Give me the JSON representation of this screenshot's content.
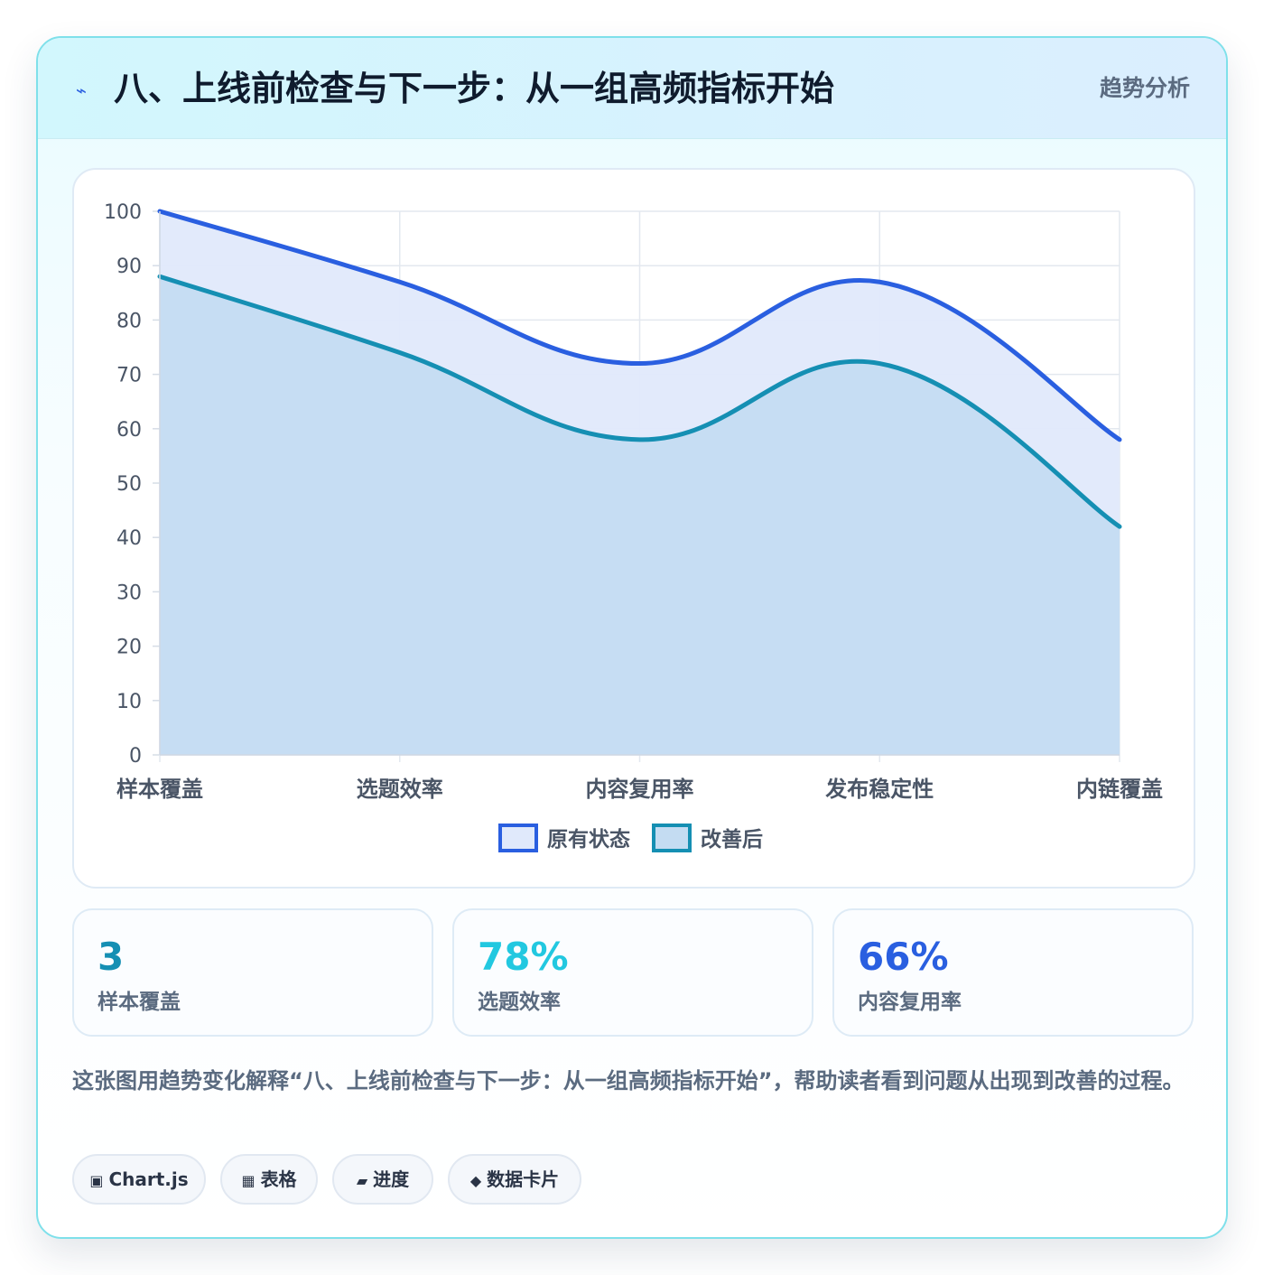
{
  "header": {
    "icon": "bolt-icon",
    "title": "八、上线前检查与下一步：从一组高频指标开始",
    "tag": "趋势分析"
  },
  "chart_data": {
    "type": "area",
    "categories": [
      "样本覆盖",
      "选题效率",
      "内容复用率",
      "发布稳定性",
      "内链覆盖"
    ],
    "series": [
      {
        "name": "原有状态",
        "values": [
          100,
          87,
          72,
          87,
          58
        ],
        "color": "#2a5fe0",
        "fill": "#e0e9fb"
      },
      {
        "name": "改善后",
        "values": [
          88,
          74,
          58,
          72,
          42
        ],
        "color": "#158fb3",
        "fill": "#c4dcf2"
      }
    ],
    "title": "",
    "xlabel": "",
    "ylabel": "",
    "ylim": [
      0,
      100
    ],
    "yticks": [
      "0",
      "10",
      "20",
      "30",
      "40",
      "50",
      "60",
      "70",
      "80",
      "90",
      "100"
    ],
    "grid": true,
    "legend": "bottom-center"
  },
  "stats": [
    {
      "value": "3",
      "label": "样本覆盖",
      "color": "#158fb3"
    },
    {
      "value": "78%",
      "label": "选题效率",
      "color": "#22c8e0"
    },
    {
      "value": "66%",
      "label": "内容复用率",
      "color": "#2a5fe0"
    }
  ],
  "description": "这张图用趋势变化解释“八、上线前检查与下一步：从一组高频指标开始”，帮助读者看到问题从出现到改善的过程。",
  "chips": [
    {
      "icon": "▣",
      "label": "Chart.js"
    },
    {
      "icon": "▦",
      "label": "表格"
    },
    {
      "icon": "▰",
      "label": "进度"
    },
    {
      "icon": "◆",
      "label": "数据卡片"
    }
  ]
}
